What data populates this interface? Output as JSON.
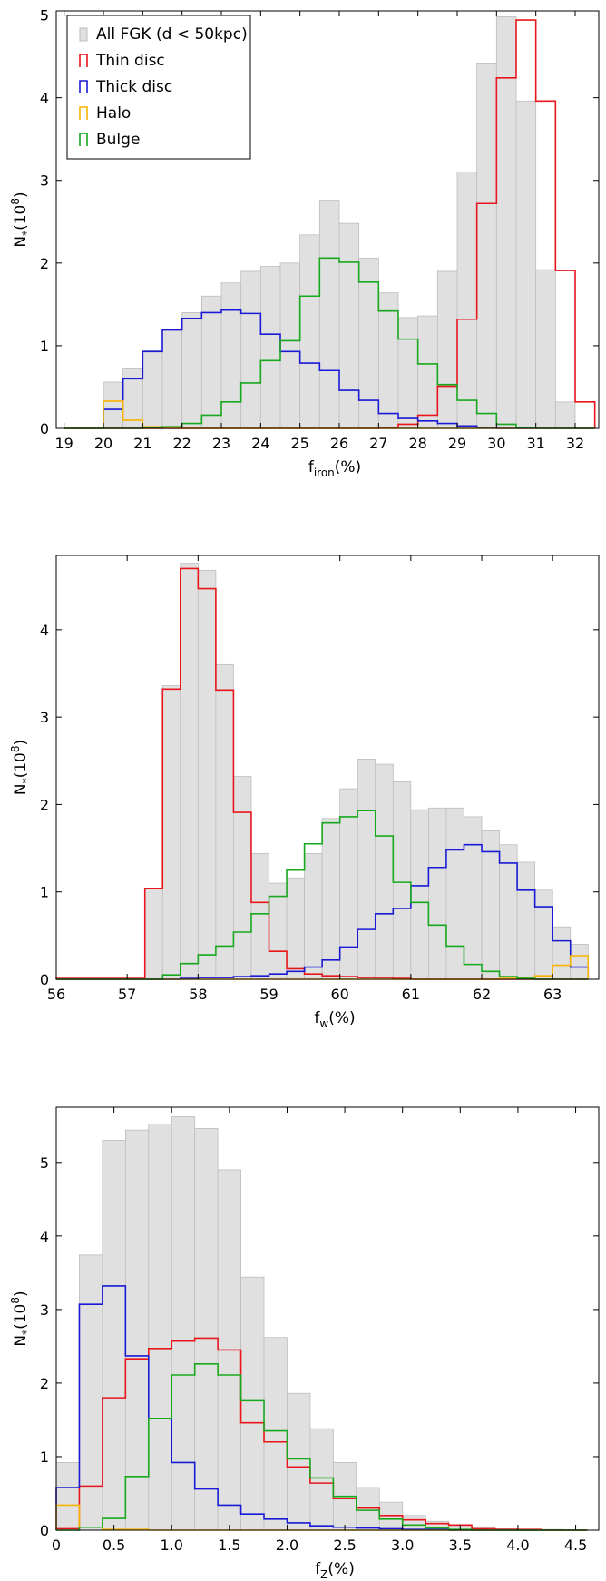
{
  "chart_data": [
    {
      "type": "bar",
      "xlabel": "f",
      "xlabel_sub": "iron",
      "xlabel_unit": "(%)",
      "ylabel": "N",
      "ylabel_sub": "*",
      "ylabel_unit": "(10",
      "ylabel_sup": "8",
      "ylabel_close": ")",
      "xlim": [
        18.8,
        32.6
      ],
      "ylim": [
        0,
        5.05
      ],
      "xticks": [
        19,
        20,
        21,
        22,
        23,
        24,
        25,
        26,
        27,
        28,
        29,
        30,
        31,
        32
      ],
      "yticks": [
        0,
        1,
        2,
        3,
        4,
        5
      ],
      "bin_edges": [
        19.0,
        19.5,
        20.0,
        20.5,
        21.0,
        21.5,
        22.0,
        22.5,
        23.0,
        23.5,
        24.0,
        24.5,
        25.0,
        25.5,
        26.0,
        26.5,
        27.0,
        27.5,
        28.0,
        28.5,
        29.0,
        29.5,
        30.0,
        30.5,
        31.0,
        31.5,
        32.0,
        32.5
      ],
      "legend": {
        "placement": "top-left",
        "entries": [
          "All FGK (d < 50kpc)",
          "Thin disc",
          "Thick disc",
          "Halo",
          "Bulge"
        ]
      },
      "series": [
        {
          "name": "All FGK (d < 50kpc)",
          "color": "#bdbdbd",
          "fill": "#e0e0e0",
          "values": [
            0,
            0,
            0.56,
            0.72,
            0.94,
            1.2,
            1.4,
            1.6,
            1.76,
            1.9,
            1.96,
            2.0,
            2.34,
            2.76,
            2.48,
            2.06,
            1.64,
            1.34,
            1.36,
            1.9,
            3.1,
            4.42,
            4.98,
            3.96,
            1.92,
            0.32,
            0
          ]
        },
        {
          "name": "Thin disc",
          "color": "#e8161b",
          "values": [
            0,
            0,
            0,
            0,
            0,
            0,
            0,
            0,
            0,
            0,
            0,
            0,
            0,
            0,
            0,
            0,
            0.01,
            0.05,
            0.16,
            0.51,
            1.32,
            2.72,
            4.24,
            4.94,
            3.96,
            1.91,
            0.32
          ]
        },
        {
          "name": "Thick disc",
          "color": "#1a1ad6",
          "values": [
            0,
            0,
            0.23,
            0.6,
            0.93,
            1.19,
            1.33,
            1.4,
            1.43,
            1.39,
            1.14,
            0.93,
            0.79,
            0.7,
            0.46,
            0.34,
            0.18,
            0.12,
            0.09,
            0.06,
            0.03,
            0.01,
            0,
            0,
            0,
            0,
            0
          ]
        },
        {
          "name": "Halo",
          "color": "#f7b500",
          "values": [
            0,
            0,
            0.33,
            0.1,
            0.02,
            0.01,
            0,
            0,
            0,
            0,
            0,
            0,
            0,
            0,
            0,
            0,
            0,
            0,
            0,
            0,
            0,
            0,
            0,
            0,
            0,
            0,
            0
          ]
        },
        {
          "name": "Bulge",
          "color": "#17a81d",
          "values": [
            0,
            0,
            0,
            0,
            0.01,
            0.02,
            0.06,
            0.16,
            0.32,
            0.55,
            0.82,
            1.06,
            1.6,
            2.06,
            2.01,
            1.77,
            1.42,
            1.08,
            0.78,
            0.53,
            0.34,
            0.18,
            0.05,
            0.01,
            0,
            0,
            0
          ]
        }
      ]
    },
    {
      "type": "bar",
      "xlabel": "f",
      "xlabel_sub": "w",
      "xlabel_unit": "(%)",
      "ylabel": "N",
      "ylabel_sub": "*",
      "ylabel_unit": "(10",
      "ylabel_sup": "8",
      "ylabel_close": ")",
      "xlim": [
        56.0,
        63.65
      ],
      "ylim": [
        0,
        4.85
      ],
      "xticks": [
        56,
        57,
        58,
        59,
        60,
        61,
        62,
        63
      ],
      "yticks": [
        0,
        1,
        2,
        3,
        4
      ],
      "bin_edges": [
        56.0,
        56.25,
        56.5,
        56.75,
        57.0,
        57.25,
        57.5,
        57.75,
        58.0,
        58.25,
        58.5,
        58.75,
        59.0,
        59.25,
        59.5,
        59.75,
        60.0,
        60.25,
        60.5,
        60.75,
        61.0,
        61.25,
        61.5,
        61.75,
        62.0,
        62.25,
        62.5,
        62.75,
        63.0,
        63.25,
        63.5
      ],
      "series": [
        {
          "name": "All FGK",
          "color": "#bdbdbd",
          "fill": "#e0e0e0",
          "values": [
            0,
            0,
            0,
            0,
            0,
            1.04,
            3.36,
            4.76,
            4.68,
            3.6,
            2.32,
            1.44,
            1.1,
            1.16,
            1.44,
            1.84,
            2.18,
            2.52,
            2.46,
            2.26,
            1.94,
            1.96,
            1.96,
            1.86,
            1.7,
            1.54,
            1.34,
            1.02,
            0.6,
            0.4,
            0
          ]
        },
        {
          "name": "Thin disc",
          "color": "#e8161b",
          "values": [
            0.01,
            0.01,
            0.01,
            0.01,
            0.01,
            1.04,
            3.32,
            4.7,
            4.47,
            3.31,
            1.91,
            0.88,
            0.32,
            0.12,
            0.06,
            0.04,
            0.03,
            0.02,
            0.02,
            0.01,
            0,
            0,
            0,
            0,
            0,
            0,
            0,
            0,
            0,
            0,
            0
          ]
        },
        {
          "name": "Thick disc",
          "color": "#1a1ad6",
          "values": [
            0,
            0,
            0,
            0,
            0,
            0,
            0,
            0.01,
            0.02,
            0.02,
            0.03,
            0.04,
            0.06,
            0.09,
            0.14,
            0.22,
            0.37,
            0.57,
            0.75,
            0.81,
            1.07,
            1.28,
            1.48,
            1.54,
            1.46,
            1.33,
            1.02,
            0.83,
            0.44,
            0.14,
            0
          ]
        },
        {
          "name": "Halo",
          "color": "#f7b500",
          "values": [
            0,
            0,
            0,
            0,
            0,
            0,
            0,
            0,
            0,
            0,
            0,
            0,
            0,
            0,
            0,
            0,
            0,
            0,
            0,
            0,
            0,
            0,
            0,
            0,
            0,
            0.01,
            0.02,
            0.04,
            0.16,
            0.27,
            0
          ]
        },
        {
          "name": "Bulge",
          "color": "#17a81d",
          "values": [
            0,
            0,
            0,
            0,
            0,
            0,
            0.05,
            0.18,
            0.28,
            0.38,
            0.54,
            0.75,
            0.95,
            1.25,
            1.55,
            1.79,
            1.86,
            1.93,
            1.64,
            1.11,
            0.88,
            0.62,
            0.38,
            0.17,
            0.09,
            0.03,
            0.01,
            0,
            0,
            0,
            0
          ]
        }
      ]
    },
    {
      "type": "bar",
      "xlabel": "f",
      "xlabel_sub": "Z",
      "xlabel_unit": "(%)",
      "ylabel": "N",
      "ylabel_sub": "*",
      "ylabel_unit": "(10",
      "ylabel_sup": "8",
      "ylabel_close": ")",
      "xlim": [
        0,
        4.7
      ],
      "ylim": [
        0,
        5.75
      ],
      "xticks": [
        0,
        0.5,
        1.0,
        1.5,
        2.0,
        2.5,
        3.0,
        3.5,
        4.0,
        4.5
      ],
      "xtick_labels": [
        "0",
        "0.5",
        "1.0",
        "1.5",
        "2.0",
        "2.5",
        "3.0",
        "3.5",
        "4.0",
        "4.5"
      ],
      "yticks": [
        0,
        1,
        2,
        3,
        4,
        5
      ],
      "bin_edges": [
        0,
        0.2,
        0.4,
        0.6,
        0.8,
        1.0,
        1.2,
        1.4,
        1.6,
        1.8,
        2.0,
        2.2,
        2.4,
        2.6,
        2.8,
        3.0,
        3.2,
        3.4,
        3.6,
        3.8,
        4.0,
        4.2,
        4.4,
        4.6
      ],
      "series": [
        {
          "name": "All FGK",
          "color": "#bdbdbd",
          "fill": "#e0e0e0",
          "values": [
            0.92,
            3.74,
            5.3,
            5.44,
            5.52,
            5.62,
            5.46,
            4.9,
            3.44,
            2.62,
            1.86,
            1.38,
            0.92,
            0.58,
            0.38,
            0.2,
            0.12,
            0.06,
            0.04,
            0.02,
            0.01,
            0.01,
            0
          ]
        },
        {
          "name": "Thin disc",
          "color": "#e8161b",
          "values": [
            0.02,
            0.6,
            1.8,
            2.33,
            2.47,
            2.57,
            2.61,
            2.45,
            1.46,
            1.2,
            0.86,
            0.64,
            0.43,
            0.3,
            0.2,
            0.14,
            0.09,
            0.07,
            0.02,
            0.01,
            0.01,
            0,
            0
          ]
        },
        {
          "name": "Thick disc",
          "color": "#1a1ad6",
          "values": [
            0.58,
            3.07,
            3.32,
            2.37,
            1.52,
            0.92,
            0.56,
            0.34,
            0.22,
            0.15,
            0.1,
            0.06,
            0.04,
            0.03,
            0.02,
            0.01,
            0.01,
            0,
            0,
            0,
            0,
            0,
            0
          ]
        },
        {
          "name": "Halo",
          "color": "#f7b500",
          "values": [
            0.34,
            0.04,
            0.01,
            0.01,
            0,
            0,
            0,
            0,
            0,
            0,
            0,
            0,
            0,
            0,
            0,
            0,
            0,
            0,
            0,
            0,
            0,
            0,
            0
          ]
        },
        {
          "name": "Bulge",
          "color": "#17a81d",
          "values": [
            0,
            0.04,
            0.16,
            0.73,
            1.52,
            2.11,
            2.26,
            2.11,
            1.76,
            1.35,
            0.97,
            0.71,
            0.46,
            0.27,
            0.15,
            0.07,
            0.03,
            0.01,
            0,
            0,
            0,
            0,
            0
          ]
        }
      ]
    }
  ]
}
